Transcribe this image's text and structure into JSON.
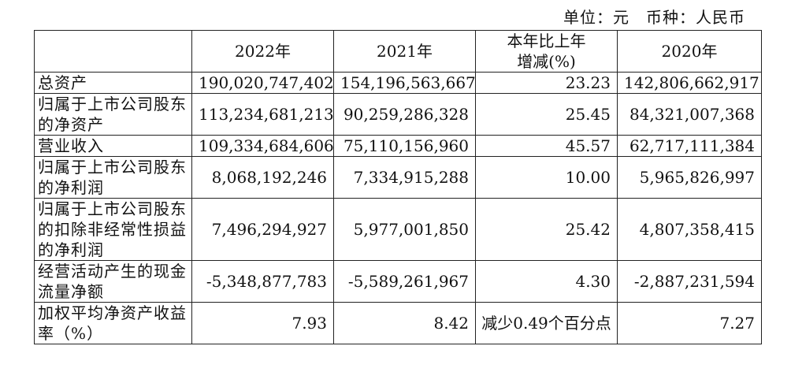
{
  "unit_line": "单位：元　币种：人民币",
  "table": {
    "headers": [
      "",
      "2022年",
      "2021年",
      "本年比上年\n增减(%)",
      "2020年"
    ],
    "rows": [
      {
        "label": "总资产",
        "v2022": "190,020,747,402",
        "v2021": "154,196,563,667",
        "change": "23.23",
        "v2020": "142,806,662,917"
      },
      {
        "label": "归属于上市公司股东的净资产",
        "v2022": "113,234,681,213",
        "v2021": "90,259,286,328",
        "change": "25.45",
        "v2020": "84,321,007,368"
      },
      {
        "label": "营业收入",
        "v2022": "109,334,684,606",
        "v2021": "75,110,156,960",
        "change": "45.57",
        "v2020": "62,717,111,384"
      },
      {
        "label": "归属于上市公司股东的净利润",
        "v2022": "8,068,192,246",
        "v2021": "7,334,915,288",
        "change": "10.00",
        "v2020": "5,965,826,997"
      },
      {
        "label": "归属于上市公司股东的扣除非经常性损益的净利润",
        "v2022": "7,496,294,927",
        "v2021": "5,977,001,850",
        "change": "25.42",
        "v2020": "4,807,358,415"
      },
      {
        "label": "经营活动产生的现金流量净额",
        "v2022": "-5,348,877,783",
        "v2021": "-5,589,261,967",
        "change": "4.30",
        "v2020": "-2,887,231,594"
      },
      {
        "label": "加权平均净资产收益率（%）",
        "v2022": "7.93",
        "v2021": "8.42",
        "change": "减少0.49个百分点",
        "v2020": "7.27"
      }
    ]
  }
}
